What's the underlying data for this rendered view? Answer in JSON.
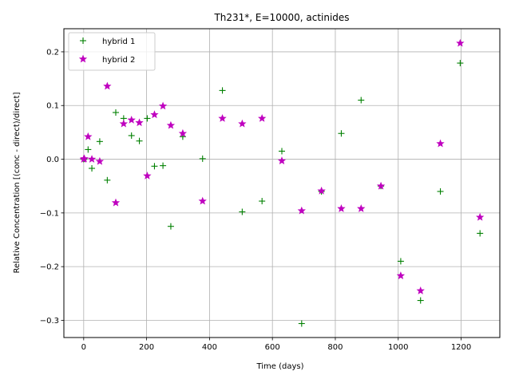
{
  "chart_data": {
    "type": "scatter",
    "title": "Th231*, E=10000, actinides",
    "xlabel": "Time (days)",
    "ylabel": "Relative Concentration [(conc - direct)/direct]",
    "xlim": [
      -63,
      1323
    ],
    "ylim": [
      -0.332,
      0.243
    ],
    "xticks": [
      0,
      200,
      400,
      600,
      800,
      1000,
      1200
    ],
    "yticks": [
      -0.3,
      -0.2,
      -0.1,
      0.0,
      0.1,
      0.2
    ],
    "xtick_labels": [
      "0",
      "200",
      "400",
      "600",
      "800",
      "1000",
      "1200"
    ],
    "ytick_labels": [
      "−0.3",
      "−0.2",
      "−0.1",
      "0.0",
      "0.1",
      "0.2"
    ],
    "grid": true,
    "legend_position": "top-left",
    "series": [
      {
        "name": "hybrid 1",
        "color": "#008000",
        "marker": "plus",
        "x": [
          0,
          2,
          14,
          26,
          51,
          75,
          102,
          127,
          152,
          177,
          202,
          225,
          252,
          277,
          315,
          378,
          441,
          504,
          567,
          630,
          693,
          756,
          819,
          882,
          945,
          1008,
          1071,
          1134,
          1197,
          1260
        ],
        "y": [
          0.0,
          0.001,
          0.018,
          -0.017,
          0.033,
          -0.039,
          0.087,
          0.076,
          0.044,
          0.034,
          0.076,
          -0.013,
          -0.012,
          -0.125,
          0.042,
          0.001,
          0.128,
          -0.098,
          -0.078,
          0.015,
          -0.306,
          -0.06,
          0.048,
          0.11,
          -0.05,
          -0.19,
          -0.263,
          -0.06,
          0.179,
          -0.138
        ]
      },
      {
        "name": "hybrid 2",
        "color": "#bf00bf",
        "marker": "star",
        "x": [
          0,
          2,
          14,
          26,
          51,
          75,
          102,
          127,
          152,
          177,
          202,
          225,
          252,
          277,
          315,
          378,
          441,
          504,
          567,
          630,
          693,
          756,
          819,
          882,
          945,
          1008,
          1071,
          1134,
          1197,
          1260
        ],
        "y": [
          0.0,
          0.001,
          0.042,
          0.0,
          -0.004,
          0.136,
          -0.081,
          0.066,
          0.073,
          0.068,
          -0.031,
          0.083,
          0.099,
          0.063,
          0.048,
          -0.078,
          0.076,
          0.066,
          0.076,
          -0.003,
          -0.096,
          -0.059,
          -0.092,
          -0.092,
          -0.05,
          -0.217,
          -0.245,
          0.029,
          0.216,
          -0.108
        ]
      }
    ]
  }
}
